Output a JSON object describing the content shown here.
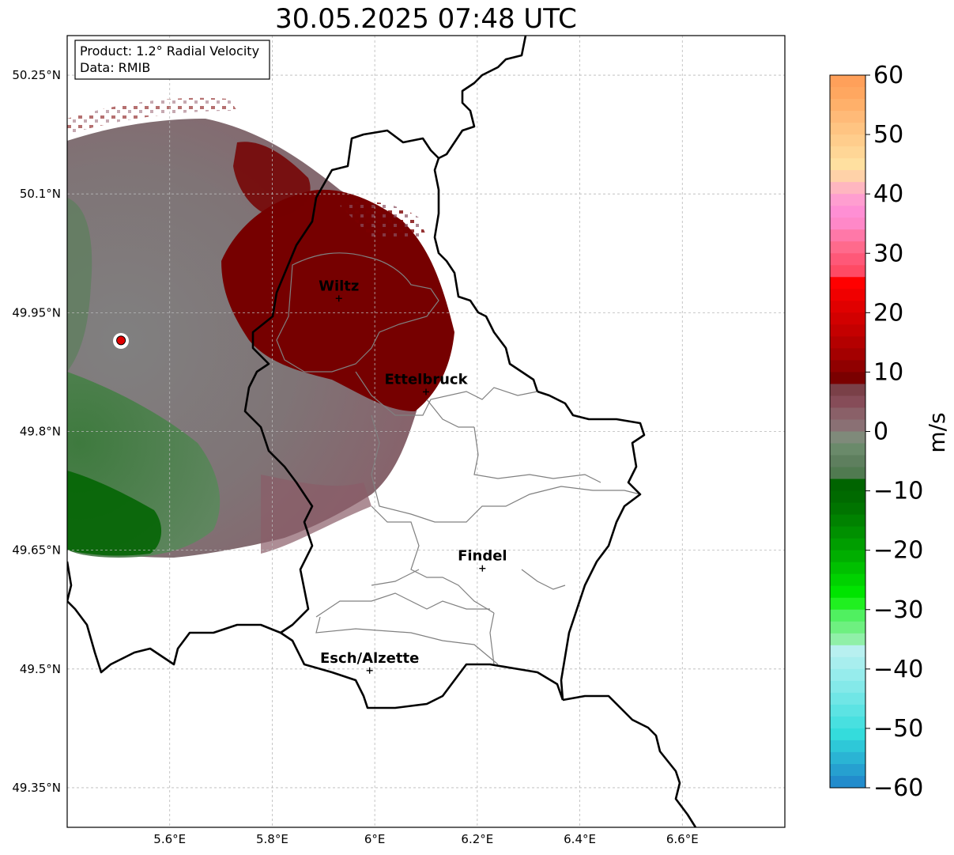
{
  "title": "30.05.2025 07:48 UTC",
  "info_box": {
    "product": "Product: 1.2° Radial Velocity",
    "data": "Data: RMIB"
  },
  "axes": {
    "lat_ticks": [
      "50.25°N",
      "50.1°N",
      "49.95°N",
      "49.8°N",
      "49.65°N",
      "49.5°N",
      "49.35°N"
    ],
    "lon_ticks": [
      "5.6°E",
      "5.8°E",
      "6°E",
      "6.2°E",
      "6.4°E",
      "6.6°E"
    ],
    "lat_values": [
      50.25,
      50.1,
      49.95,
      49.8,
      49.65,
      49.5,
      49.35
    ],
    "lon_values": [
      5.6,
      5.8,
      6.0,
      6.2,
      6.4,
      6.6
    ],
    "lon_range": [
      5.4,
      6.8
    ],
    "lat_range": [
      49.3,
      50.3
    ],
    "grid": true
  },
  "places": [
    {
      "name": "Wiltz",
      "lon": 5.93,
      "lat": 49.968
    },
    {
      "name": "Ettelbruck",
      "lon": 6.1,
      "lat": 49.85
    },
    {
      "name": "Findel",
      "lon": 6.21,
      "lat": 49.627
    },
    {
      "name": "Esch/Alzette",
      "lon": 5.99,
      "lat": 49.498
    }
  ],
  "radar_site": {
    "lon": 5.505,
    "lat": 49.915,
    "color": "#e00000"
  },
  "colorbar": {
    "label": "m/s",
    "ticks": [
      "60",
      "50",
      "40",
      "30",
      "20",
      "10",
      "0",
      "−10",
      "−20",
      "−30",
      "−40",
      "−50",
      "−60"
    ],
    "range": [
      -60,
      60
    ],
    "colors": {
      "strong_negative": "#1f77c4",
      "cyan": "#2de3e3",
      "light_cyan": "#bff0f0",
      "light_green": "#7df09a",
      "green": "#00e000",
      "dark_green": "#006400",
      "grey_green": "#5e7f5e",
      "grey_brown": "#8a6a70",
      "dark_red": "#7a0000",
      "red": "#f00000",
      "pink": "#ff88c8",
      "peach": "#ffd59a",
      "orange": "#ff9a50"
    }
  },
  "chart_data": {
    "type": "heatmap",
    "title": "30.05.2025 07:48 UTC",
    "xlabel": "",
    "ylabel": "",
    "colorbar_label": "m/s",
    "colorbar_range": [
      -60,
      60
    ],
    "x_ticks": [
      "5.6°E",
      "5.8°E",
      "6°E",
      "6.2°E",
      "6.4°E",
      "6.6°E"
    ],
    "y_ticks": [
      "49.35°N",
      "49.5°N",
      "49.65°N",
      "49.8°N",
      "49.95°N",
      "50.1°N",
      "50.25°N"
    ],
    "grid": true
  }
}
